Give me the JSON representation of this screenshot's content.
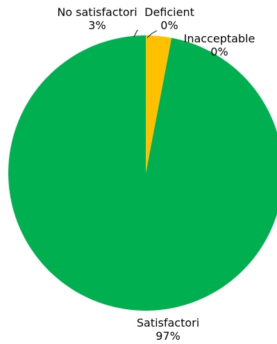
{
  "chart_data": {
    "type": "pie",
    "title": "",
    "slices": [
      {
        "label": "Satisfactori",
        "value": 97,
        "value_text": "97%",
        "color": "#00B050"
      },
      {
        "label": "No satisfactori",
        "value": 3,
        "value_text": "3%",
        "color": "#FFC000"
      },
      {
        "label": "Deficient",
        "value": 0,
        "value_text": "0%",
        "color": "#FF0000"
      },
      {
        "label": "Inacceptable",
        "value": 0,
        "value_text": "0%",
        "color": "#C00000"
      }
    ],
    "legend": "none",
    "data_labels": "category and percentage",
    "start_angle": "12 o'clock",
    "direction": "counter-clockwise"
  }
}
